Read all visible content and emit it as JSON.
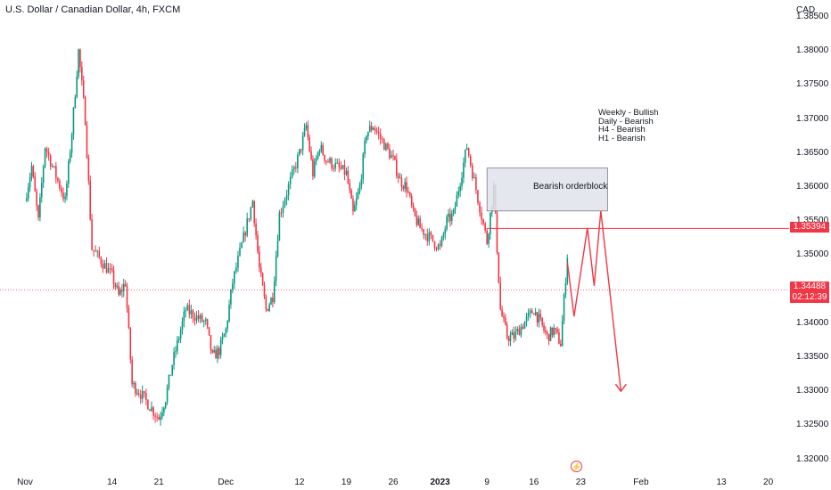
{
  "header": {
    "title": "U.S. Dollar / Canadian Dollar, 4h, FXCM",
    "currency": "CAD"
  },
  "colors": {
    "up": "#089981",
    "down": "#f23645",
    "drawing": "#f23645",
    "price_line": "#f23645",
    "orderblock_fill": "#e0e3eb",
    "orderblock_border": "#787b86"
  },
  "annotations": {
    "notes": [
      "Weekly - Bullish",
      "Daily - Bearish",
      "H4 - Bearish",
      "H1 - Bearish"
    ],
    "orderblock_label": "Bearish orderblock",
    "level_tag": "1.35394",
    "price_tag": "1.34488",
    "countdown": "02:12:39",
    "badge_icon": "lightning-icon"
  },
  "chart_data": {
    "type": "candlestick",
    "ylim": [
      1.3185,
      1.3875
    ],
    "y_ticks": [
      "1.38500",
      "1.38000",
      "1.37500",
      "1.37000",
      "1.36500",
      "1.36000",
      "1.35500",
      "1.35000",
      "1.34500",
      "1.34000",
      "1.33500",
      "1.33000",
      "1.32500",
      "1.32000"
    ],
    "x_ticks": [
      {
        "label": "Nov",
        "bold": false
      },
      {
        "label": "14",
        "bold": false
      },
      {
        "label": "21",
        "bold": false
      },
      {
        "label": "Dec",
        "bold": false
      },
      {
        "label": "12",
        "bold": false
      },
      {
        "label": "19",
        "bold": false
      },
      {
        "label": "26",
        "bold": false
      },
      {
        "label": "2023",
        "bold": true
      },
      {
        "label": "9",
        "bold": false
      },
      {
        "label": "16",
        "bold": false
      },
      {
        "label": "23",
        "bold": false
      },
      {
        "label": "Feb",
        "bold": false
      },
      {
        "label": "13",
        "bold": false
      },
      {
        "label": "20",
        "bold": false
      }
    ],
    "close_path": [
      [
        "Nov 1",
        1.358
      ],
      [
        "Nov 2",
        1.363
      ],
      [
        "Nov 3",
        1.355
      ],
      [
        "Nov 4",
        1.366
      ],
      [
        "Nov 7",
        1.358
      ],
      [
        "Nov 8",
        1.368
      ],
      [
        "Nov 9",
        1.38
      ],
      [
        "Nov 10",
        1.37
      ],
      [
        "Nov 11",
        1.351
      ],
      [
        "Nov 14",
        1.347
      ],
      [
        "Nov 15",
        1.344
      ],
      [
        "Nov 16",
        1.346
      ],
      [
        "Nov 17",
        1.331
      ],
      [
        "Nov 18",
        1.33
      ],
      [
        "Nov 21",
        1.326
      ],
      [
        "Nov 22",
        1.329
      ],
      [
        "Nov 23",
        1.334
      ],
      [
        "Nov 24",
        1.338
      ],
      [
        "Nov 25",
        1.342
      ],
      [
        "Nov 28",
        1.34
      ],
      [
        "Nov 29",
        1.335
      ],
      [
        "Nov 30",
        1.336
      ],
      [
        "Dec 1",
        1.339
      ],
      [
        "Dec 2",
        1.346
      ],
      [
        "Dec 5",
        1.358
      ],
      [
        "Dec 6",
        1.348
      ],
      [
        "Dec 7",
        1.342
      ],
      [
        "Dec 8",
        1.344
      ],
      [
        "Dec 9",
        1.356
      ],
      [
        "Dec 12",
        1.365
      ],
      [
        "Dec 13",
        1.369
      ],
      [
        "Dec 14",
        1.362
      ],
      [
        "Dec 15",
        1.366
      ],
      [
        "Dec 16",
        1.364
      ],
      [
        "Dec 19",
        1.362
      ],
      [
        "Dec 20",
        1.356
      ],
      [
        "Dec 21",
        1.36
      ],
      [
        "Dec 22",
        1.368
      ],
      [
        "Dec 23",
        1.369
      ],
      [
        "Dec 26",
        1.364
      ],
      [
        "Dec 27",
        1.361
      ],
      [
        "Dec 28",
        1.36
      ],
      [
        "Dec 29",
        1.356
      ],
      [
        "Dec 30",
        1.354
      ],
      [
        "Jan 2",
        1.351
      ],
      [
        "Jan 3",
        1.355
      ],
      [
        "Jan 4",
        1.356
      ],
      [
        "Jan 5",
        1.361
      ],
      [
        "Jan 6",
        1.366
      ],
      [
        "Jan 9",
        1.352
      ],
      [
        "Jan 10",
        1.36
      ],
      [
        "Jan 11",
        1.342
      ],
      [
        "Jan 12",
        1.338
      ],
      [
        "Jan 13",
        1.338
      ],
      [
        "Jan 16",
        1.342
      ],
      [
        "Jan 17",
        1.34
      ],
      [
        "Jan 18",
        1.338
      ],
      [
        "Jan 19",
        1.339
      ],
      [
        "Jan 20",
        1.337
      ],
      [
        "Jan 21",
        1.35
      ]
    ],
    "projection": [
      [
        "Jan 21",
        1.349
      ],
      [
        "Jan 22",
        1.341
      ],
      [
        "Jan 24",
        1.354
      ],
      [
        "Jan 25",
        1.3455
      ],
      [
        "Jan 26",
        1.3565
      ],
      [
        "Jan 29",
        1.33
      ]
    ],
    "orderblock": {
      "from": "Jan 9",
      "to": "Jan 27",
      "top": 1.3628,
      "bottom": 1.3565
    },
    "horizontal_level": 1.35394,
    "current_price": 1.34488
  }
}
